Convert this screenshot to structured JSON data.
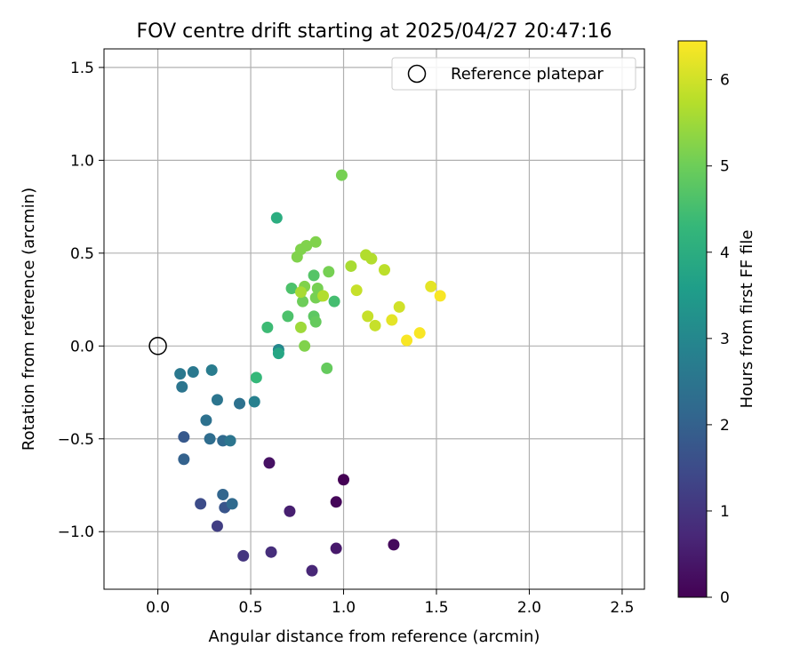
{
  "chart_data": {
    "type": "scatter",
    "title": "FOV centre drift starting at 2025/04/27 20:47:16",
    "xlabel": "Angular distance from reference (arcmin)",
    "ylabel": "Rotation from reference (arcmin)",
    "xlim": [
      -0.29,
      2.62
    ],
    "ylim": [
      -1.31,
      1.6
    ],
    "xticks": [
      0.0,
      0.5,
      1.0,
      1.5,
      2.0,
      2.5
    ],
    "xtick_labels": [
      "0.0",
      "0.5",
      "1.0",
      "1.5",
      "2.0",
      "2.5"
    ],
    "yticks": [
      -1.0,
      -0.5,
      0.0,
      0.5,
      1.0,
      1.5
    ],
    "ytick_labels": [
      "−1.0",
      "−0.5",
      "0.0",
      "0.5",
      "1.0",
      "1.5"
    ],
    "grid": true,
    "legend": {
      "position": "top-right",
      "entries": [
        {
          "label": "Reference platepar",
          "marker": "open-circle",
          "x": 0.0,
          "y": 0.0
        }
      ]
    },
    "colorbar": {
      "label": "Hours from first FF file",
      "colormap": "viridis",
      "range": [
        0,
        6.45
      ],
      "ticks": [
        0,
        1,
        2,
        3,
        4,
        5,
        6
      ],
      "tick_labels": [
        "0",
        "1",
        "2",
        "3",
        "4",
        "5",
        "6"
      ],
      "stops": [
        "#440154",
        "#482878",
        "#3e4989",
        "#31688e",
        "#26828e",
        "#1f9e89",
        "#35b779",
        "#6ece58",
        "#b5de2b",
        "#fde725"
      ]
    },
    "points": [
      {
        "x": 1.0,
        "y": -0.72,
        "hours": 0.0
      },
      {
        "x": 0.96,
        "y": -0.84,
        "hours": 0.1
      },
      {
        "x": 1.27,
        "y": -1.07,
        "hours": 0.15
      },
      {
        "x": 0.6,
        "y": -0.63,
        "hours": 0.3
      },
      {
        "x": 0.96,
        "y": -1.09,
        "hours": 0.45
      },
      {
        "x": 0.71,
        "y": -0.89,
        "hours": 0.55
      },
      {
        "x": 0.83,
        "y": -1.21,
        "hours": 0.7
      },
      {
        "x": 0.61,
        "y": -1.11,
        "hours": 0.85
      },
      {
        "x": 0.46,
        "y": -1.13,
        "hours": 1.0
      },
      {
        "x": 0.32,
        "y": -0.97,
        "hours": 1.2
      },
      {
        "x": 0.23,
        "y": -0.85,
        "hours": 1.5
      },
      {
        "x": 0.36,
        "y": -0.87,
        "hours": 1.7
      },
      {
        "x": 0.14,
        "y": -0.49,
        "hours": 1.8
      },
      {
        "x": 0.14,
        "y": -0.61,
        "hours": 2.0
      },
      {
        "x": 0.35,
        "y": -0.8,
        "hours": 2.1
      },
      {
        "x": 0.4,
        "y": -0.85,
        "hours": 2.2
      },
      {
        "x": 0.35,
        "y": -0.51,
        "hours": 2.2
      },
      {
        "x": 0.28,
        "y": -0.5,
        "hours": 2.3
      },
      {
        "x": 0.26,
        "y": -0.4,
        "hours": 2.4
      },
      {
        "x": 0.44,
        "y": -0.31,
        "hours": 2.4
      },
      {
        "x": 0.39,
        "y": -0.51,
        "hours": 2.5
      },
      {
        "x": 0.32,
        "y": -0.29,
        "hours": 2.5
      },
      {
        "x": 0.13,
        "y": -0.22,
        "hours": 2.5
      },
      {
        "x": 0.12,
        "y": -0.15,
        "hours": 2.6
      },
      {
        "x": 0.19,
        "y": -0.14,
        "hours": 2.6
      },
      {
        "x": 0.29,
        "y": -0.13,
        "hours": 2.7
      },
      {
        "x": 0.52,
        "y": -0.3,
        "hours": 2.8
      },
      {
        "x": 0.65,
        "y": -0.02,
        "hours": 3.0
      },
      {
        "x": 0.65,
        "y": -0.04,
        "hours": 3.8
      },
      {
        "x": 0.64,
        "y": 0.69,
        "hours": 4.0
      },
      {
        "x": 0.53,
        "y": -0.17,
        "hours": 4.3
      },
      {
        "x": 0.59,
        "y": 0.1,
        "hours": 4.4
      },
      {
        "x": 0.7,
        "y": 0.16,
        "hours": 4.6
      },
      {
        "x": 0.72,
        "y": 0.31,
        "hours": 4.6
      },
      {
        "x": 0.95,
        "y": 0.24,
        "hours": 4.5
      },
      {
        "x": 0.84,
        "y": 0.38,
        "hours": 4.7
      },
      {
        "x": 0.84,
        "y": 0.16,
        "hours": 4.8
      },
      {
        "x": 0.85,
        "y": 0.13,
        "hours": 4.9
      },
      {
        "x": 0.88,
        "y": 0.27,
        "hours": 4.9
      },
      {
        "x": 0.91,
        "y": -0.12,
        "hours": 4.9
      },
      {
        "x": 0.78,
        "y": 0.24,
        "hours": 5.0
      },
      {
        "x": 0.85,
        "y": 0.26,
        "hours": 5.1
      },
      {
        "x": 0.92,
        "y": 0.4,
        "hours": 5.1
      },
      {
        "x": 0.86,
        "y": 0.31,
        "hours": 5.1
      },
      {
        "x": 0.79,
        "y": 0.32,
        "hours": 5.2
      },
      {
        "x": 0.79,
        "y": 0.0,
        "hours": 5.2
      },
      {
        "x": 0.75,
        "y": 0.48,
        "hours": 5.2
      },
      {
        "x": 0.77,
        "y": 0.52,
        "hours": 5.2
      },
      {
        "x": 0.8,
        "y": 0.54,
        "hours": 5.2
      },
      {
        "x": 0.85,
        "y": 0.56,
        "hours": 5.2
      },
      {
        "x": 0.99,
        "y": 0.92,
        "hours": 5.1
      },
      {
        "x": 0.77,
        "y": 0.1,
        "hours": 5.5
      },
      {
        "x": 0.77,
        "y": 0.29,
        "hours": 5.6
      },
      {
        "x": 0.89,
        "y": 0.27,
        "hours": 5.7
      },
      {
        "x": 1.04,
        "y": 0.43,
        "hours": 5.6
      },
      {
        "x": 1.12,
        "y": 0.49,
        "hours": 5.7
      },
      {
        "x": 1.15,
        "y": 0.47,
        "hours": 5.7
      },
      {
        "x": 1.22,
        "y": 0.41,
        "hours": 5.8
      },
      {
        "x": 1.07,
        "y": 0.3,
        "hours": 5.9
      },
      {
        "x": 1.13,
        "y": 0.16,
        "hours": 5.9
      },
      {
        "x": 1.17,
        "y": 0.11,
        "hours": 5.9
      },
      {
        "x": 1.3,
        "y": 0.21,
        "hours": 6.0
      },
      {
        "x": 1.26,
        "y": 0.14,
        "hours": 6.2
      },
      {
        "x": 1.47,
        "y": 0.32,
        "hours": 6.2
      },
      {
        "x": 1.52,
        "y": 0.27,
        "hours": 6.4
      },
      {
        "x": 1.34,
        "y": 0.03,
        "hours": 6.4
      },
      {
        "x": 1.41,
        "y": 0.07,
        "hours": 6.4
      }
    ]
  }
}
